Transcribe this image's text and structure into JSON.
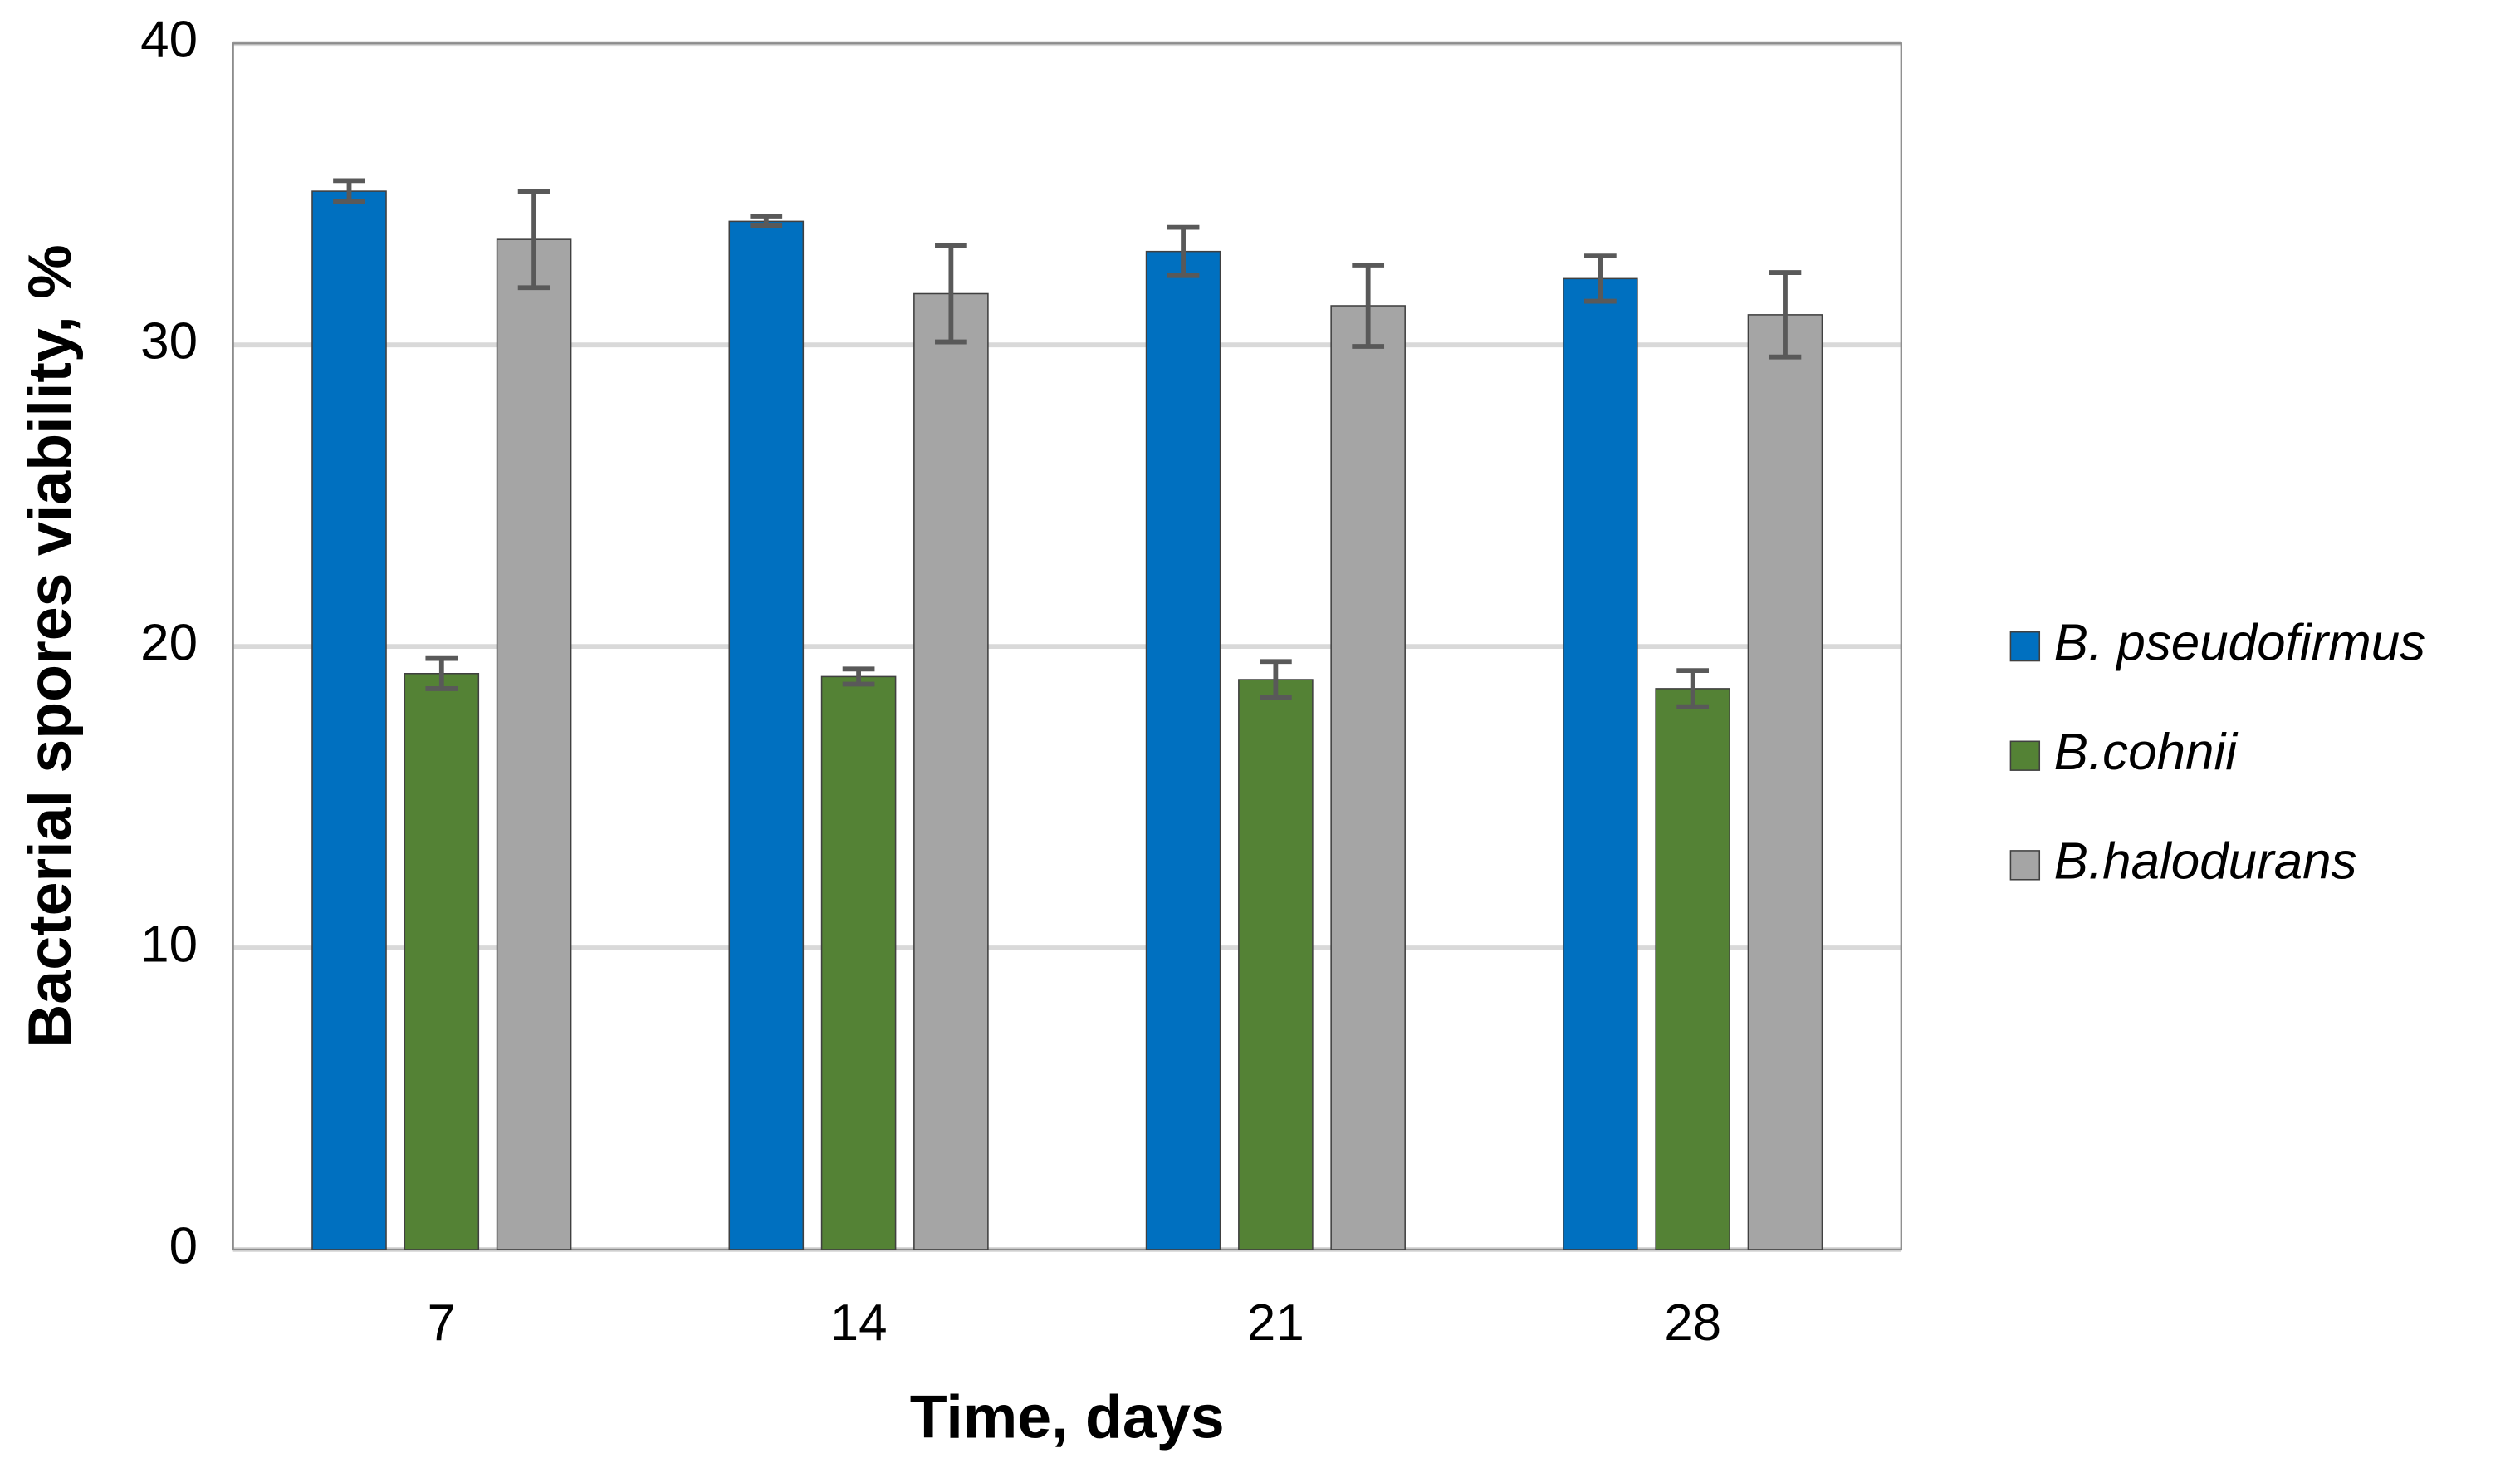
{
  "chart_data": {
    "type": "bar",
    "x_label": "Time, days",
    "y_label": "Bacterial spores viability, %",
    "categories": [
      "7",
      "14",
      "21",
      "28"
    ],
    "series": [
      {
        "name": "B. pseudofirmus",
        "color": "#0070c0",
        "values": [
          35.1,
          34.1,
          33.1,
          32.2
        ],
        "errors": [
          0.35,
          0.15,
          0.8,
          0.75
        ]
      },
      {
        "name": "B.cohnii",
        "color": "#548235",
        "values": [
          19.1,
          19.0,
          18.9,
          18.6
        ],
        "errors": [
          0.5,
          0.25,
          0.6,
          0.6
        ]
      },
      {
        "name": "B.halodurans",
        "color": "#a5a5a5",
        "values": [
          33.5,
          31.7,
          31.3,
          31.0
        ],
        "errors": [
          1.6,
          1.6,
          1.35,
          1.4
        ]
      }
    ],
    "ylim": [
      0,
      40
    ],
    "yticks": [
      0,
      10,
      20,
      30,
      40
    ],
    "grid": true,
    "legend": "right"
  }
}
